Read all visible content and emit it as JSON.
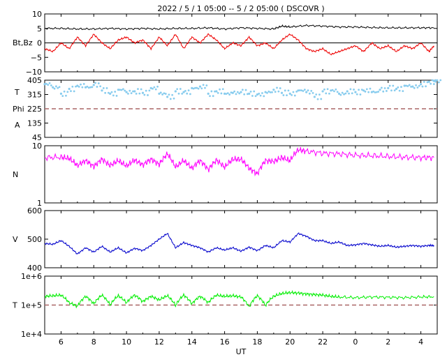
{
  "title": "2022  /  5 /  1   05:00  --   5  /  2   05:00  ( DSCOVR )",
  "xlabel": "UT",
  "x_ticks": [
    "6",
    "8",
    "10",
    "12",
    "14",
    "16",
    "18",
    "20",
    "22",
    "0",
    "2",
    "4"
  ],
  "colors": {
    "bt": "#000000",
    "bz": "#ee0000",
    "theta": "#88ccee",
    "phi": "#bbbbbb",
    "phi_alt": "#dd66dd",
    "density": "#ff00ff",
    "speed": "#0000cc",
    "temperature": "#00ee00",
    "reference": "#aa6666"
  },
  "chart_data": [
    {
      "type": "line",
      "panel": "magnetic-field",
      "ylabel": "Bt,Bz",
      "ylim": [
        -10,
        10
      ],
      "y_ticks": [
        "10",
        "5",
        "0",
        "−5",
        "−10"
      ],
      "x_range_hours": [
        5.0,
        29.0
      ],
      "zero_line": 0,
      "series": [
        {
          "name": "Bt",
          "x": [
            5.0,
            6,
            7,
            8,
            9,
            10,
            11,
            12,
            13,
            14,
            15,
            16,
            17,
            18,
            19,
            19.5,
            20,
            21,
            22,
            23,
            24,
            25,
            26,
            27,
            28,
            28.8
          ],
          "values": [
            5,
            5,
            4.8,
            4.8,
            5,
            4.8,
            5,
            4.8,
            5,
            5,
            5.2,
            4.8,
            5.2,
            5,
            4.8,
            5.8,
            5.5,
            6,
            5.8,
            5.5,
            5.5,
            5.3,
            5.2,
            5.2,
            5.2,
            5.2
          ]
        },
        {
          "name": "Bz",
          "x": [
            5.0,
            5.5,
            6,
            6.5,
            7,
            7.5,
            8,
            8.5,
            9,
            9.5,
            10,
            10.5,
            11,
            11.5,
            12,
            12.5,
            13,
            13.5,
            14,
            14.5,
            15,
            15.5,
            16,
            16.5,
            17,
            17.5,
            18,
            18.5,
            19,
            19.5,
            20,
            20.5,
            21,
            21.5,
            22,
            22.5,
            23,
            23.5,
            24,
            24.5,
            25,
            25.5,
            26,
            26.5,
            27,
            27.5,
            28,
            28.5,
            28.8
          ],
          "values": [
            -2,
            -3,
            0,
            -2,
            2,
            -1,
            3,
            0,
            -2,
            1,
            2,
            0,
            1,
            -2,
            2,
            -1,
            3,
            -2,
            2,
            0,
            3,
            1,
            -2,
            0,
            -1,
            2,
            -1,
            0,
            -2,
            1,
            3,
            1,
            -2,
            -3,
            -2,
            -4,
            -3,
            -2,
            -1,
            -3,
            0,
            -2,
            -1,
            -3,
            -1,
            -2,
            0,
            -3,
            -1
          ]
        }
      ]
    },
    {
      "type": "scatter",
      "panel": "angles",
      "ylabel": "T\nPhi\nA",
      "ylim": [
        45,
        405
      ],
      "y_ticks": [
        "405",
        "315",
        "225",
        "135",
        "45"
      ],
      "x_range_hours": [
        5.0,
        29.0
      ],
      "reference_line": 225,
      "series": [
        {
          "name": "theta",
          "x": [
            5.0,
            5.5,
            6,
            6.5,
            7,
            7.5,
            8,
            8.5,
            9,
            9.5,
            10,
            10.5,
            11,
            11.5,
            12,
            12.5,
            13,
            13.5,
            14,
            14.5,
            15,
            15.5,
            16,
            16.5,
            17,
            17.5,
            18,
            18.5,
            19,
            19.5,
            20,
            20.5,
            21,
            21.5,
            22,
            22.5,
            23,
            23.5,
            24,
            24.5,
            25,
            25.5,
            26,
            26.5,
            27,
            27.5,
            28,
            28.5,
            28.8
          ],
          "values": [
            380,
            360,
            320,
            350,
            370,
            360,
            375,
            340,
            320,
            345,
            330,
            335,
            325,
            355,
            320,
            300,
            335,
            330,
            355,
            365,
            320,
            335,
            320,
            325,
            330,
            320,
            315,
            330,
            345,
            325,
            320,
            340,
            330,
            300,
            335,
            340,
            320,
            335,
            330,
            340,
            330,
            345,
            355,
            350,
            370,
            365,
            380,
            395,
            400
          ]
        }
      ]
    },
    {
      "type": "line",
      "panel": "density",
      "ylabel": "N",
      "log_scale": true,
      "ylim": [
        1,
        10
      ],
      "y_ticks": [
        "10",
        "1"
      ],
      "x_range_hours": [
        5.0,
        29.0
      ],
      "series": [
        {
          "name": "N",
          "x": [
            5.0,
            6,
            6.5,
            7,
            7.5,
            8,
            8.5,
            9,
            9.5,
            10,
            10.5,
            11,
            11.5,
            12,
            12.5,
            13,
            13.5,
            14,
            14.5,
            15,
            15.5,
            16,
            16.5,
            17,
            17.5,
            18,
            18.5,
            19,
            19.5,
            20,
            20.5,
            21,
            22,
            23,
            24,
            25,
            26,
            27,
            28,
            28.8
          ],
          "values": [
            6.2,
            6.3,
            6.0,
            4.5,
            5.5,
            4.3,
            5.8,
            4.5,
            5.5,
            4.4,
            5.6,
            4.6,
            5.8,
            4.7,
            7.2,
            4.2,
            5.5,
            4.0,
            5.5,
            3.8,
            5.6,
            4.2,
            5.8,
            5.8,
            4.0,
            3.2,
            5.5,
            5.3,
            6.2,
            5.5,
            8.5,
            8.0,
            7.4,
            7.2,
            6.8,
            6.7,
            6.5,
            6.3,
            6.2,
            6.2
          ]
        }
      ]
    },
    {
      "type": "line",
      "panel": "speed",
      "ylabel": "V",
      "ylim": [
        400,
        600
      ],
      "y_ticks": [
        "600",
        "500",
        "400"
      ],
      "x_range_hours": [
        5.0,
        29.0
      ],
      "series": [
        {
          "name": "V",
          "x": [
            5.0,
            5.5,
            6,
            6.5,
            7,
            7.5,
            8,
            8.5,
            9,
            9.5,
            10,
            10.5,
            11,
            11.5,
            12,
            12.5,
            13,
            13.5,
            14,
            14.5,
            15,
            15.5,
            16,
            16.5,
            17,
            17.5,
            18,
            18.5,
            19,
            19.5,
            20,
            20.5,
            21,
            21.5,
            22,
            22.5,
            23,
            23.5,
            24,
            24.5,
            25,
            25.5,
            26,
            26.5,
            27,
            27.5,
            28,
            28.5,
            28.8
          ],
          "values": [
            485,
            482,
            495,
            475,
            448,
            470,
            455,
            475,
            455,
            470,
            452,
            468,
            460,
            478,
            500,
            520,
            470,
            488,
            478,
            470,
            455,
            470,
            462,
            470,
            458,
            472,
            460,
            478,
            470,
            495,
            490,
            520,
            510,
            495,
            495,
            485,
            490,
            478,
            480,
            485,
            480,
            475,
            478,
            472,
            475,
            478,
            475,
            478,
            478
          ]
        }
      ]
    },
    {
      "type": "line",
      "panel": "temperature",
      "ylabel": "T",
      "log_scale": true,
      "ylim": [
        10000,
        1000000
      ],
      "y_ticks": [
        "1e+6",
        "1e+5",
        "1e+4"
      ],
      "x_range_hours": [
        5.0,
        29.0
      ],
      "reference_line": 100000,
      "series": [
        {
          "name": "T",
          "x": [
            5.0,
            5.5,
            6,
            6.5,
            7,
            7.5,
            8,
            8.5,
            9,
            9.5,
            10,
            10.5,
            11,
            11.5,
            12,
            12.5,
            13,
            13.5,
            14,
            14.5,
            15,
            15.5,
            16,
            16.5,
            17,
            17.5,
            18,
            18.5,
            19,
            19.5,
            20,
            20.5,
            21,
            21.5,
            22,
            22.5,
            23,
            24,
            25,
            26,
            27,
            28,
            28.8
          ],
          "values": [
            200000,
            210000,
            220000,
            120000,
            90000,
            200000,
            110000,
            220000,
            100000,
            210000,
            120000,
            220000,
            130000,
            200000,
            150000,
            210000,
            95000,
            220000,
            110000,
            200000,
            120000,
            220000,
            200000,
            210000,
            190000,
            85000,
            210000,
            95000,
            200000,
            250000,
            270000,
            260000,
            240000,
            230000,
            220000,
            200000,
            190000,
            180000,
            190000,
            185000,
            180000,
            190000,
            195000
          ]
        }
      ]
    }
  ]
}
